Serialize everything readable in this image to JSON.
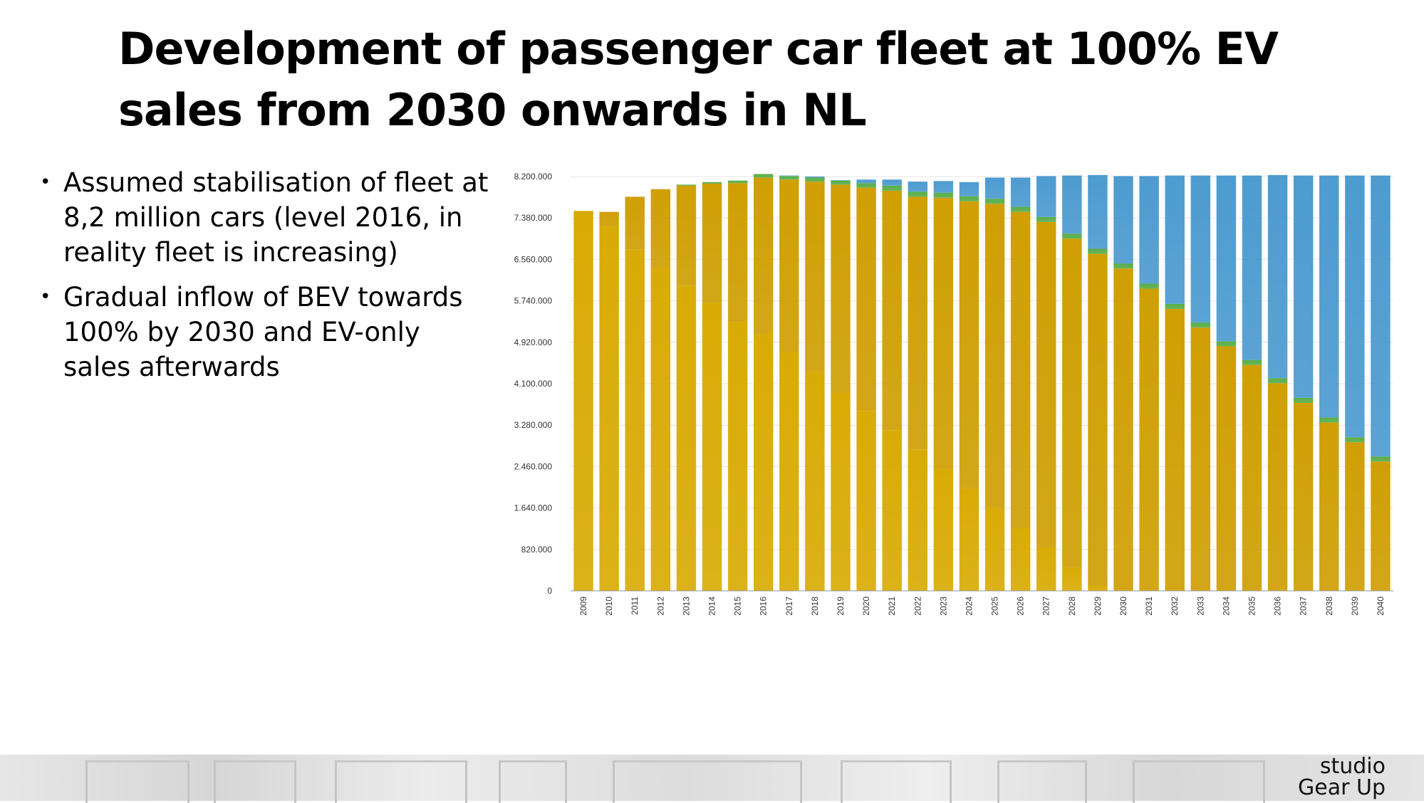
{
  "slide": {
    "title": "Development of passenger car fleet at 100% EV sales from 2030 onwards in NL",
    "bullets": [
      "Assumed stabilisation of fleet at 8,2 million cars (level 2016, in reality fleet is increasing)",
      "Gradual inflow of BEV towards 100% by 2030 and EV-only sales afterwards"
    ],
    "logo": {
      "line1": "studio",
      "line2": "Gear Up"
    }
  },
  "chart_data": {
    "type": "bar",
    "stacked": true,
    "categories": [
      "2009",
      "2010",
      "2011",
      "2012",
      "2013",
      "2014",
      "2015",
      "2016",
      "2017",
      "2018",
      "2019",
      "2020",
      "2021",
      "2022",
      "2023",
      "2024",
      "2025",
      "2026",
      "2027",
      "2028",
      "2029",
      "2030",
      "2031",
      "2032",
      "2033",
      "2034",
      "2035",
      "2036",
      "2037",
      "2038",
      "2039",
      "2040"
    ],
    "series": [
      {
        "color": "#d9ab06",
        "values": [
          7520000,
          7220000,
          6760000,
          6390000,
          6040000,
          5700000,
          5320000,
          5080000,
          4720000,
          4340000,
          3930000,
          3560000,
          3180000,
          2800000,
          2410000,
          2030000,
          1640000,
          1240000,
          860000,
          470000,
          90000,
          0,
          0,
          0,
          0,
          0,
          0,
          0,
          0,
          0,
          0,
          0
        ]
      },
      {
        "color": "#cf9f04",
        "values": [
          0,
          280000,
          1040000,
          1560000,
          1980000,
          2360000,
          2750000,
          3100000,
          3420000,
          3760000,
          4110000,
          4420000,
          4740000,
          5000000,
          5370000,
          5680000,
          6020000,
          6260000,
          6440000,
          6500000,
          6580000,
          6380000,
          5980000,
          5580000,
          5210000,
          4840000,
          4470000,
          4110000,
          3720000,
          3330000,
          2940000,
          2560000
        ]
      },
      {
        "color": "#5aae4a",
        "values": [
          0,
          0,
          0,
          0,
          20000,
          30000,
          50000,
          70000,
          70000,
          80000,
          80000,
          90000,
          100000,
          100000,
          100000,
          100000,
          100000,
          100000,
          100000,
          100000,
          100000,
          100000,
          100000,
          100000,
          100000,
          100000,
          100000,
          100000,
          100000,
          100000,
          100000,
          100000
        ]
      },
      {
        "color": "#4d9bd0",
        "values": [
          0,
          0,
          0,
          0,
          0,
          0,
          0,
          0,
          10000,
          20000,
          10000,
          70000,
          120000,
          200000,
          230000,
          280000,
          420000,
          580000,
          810000,
          1150000,
          1460000,
          1730000,
          2130000,
          2540000,
          2910000,
          3280000,
          3650000,
          4020000,
          4400000,
          4790000,
          5180000,
          5560000
        ]
      }
    ],
    "ylim": [
      0,
      8200000
    ],
    "y_ticks": [
      "0",
      "820.000",
      "1.640.000",
      "2.460.000",
      "3.280.000",
      "4.100.000",
      "4.920.000",
      "5.740.000",
      "6.560.000",
      "7.380.000",
      "8.200.000"
    ],
    "grid": true,
    "legend": "none"
  }
}
